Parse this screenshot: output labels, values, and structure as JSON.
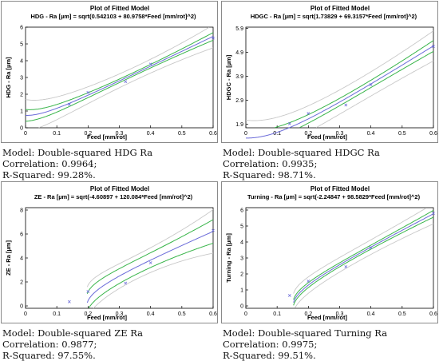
{
  "panels": [
    {
      "id": "hdg",
      "title": "Plot of Fitted Model",
      "subtitle": "HDG - Ra [µm] = sqrt(0.542103 + 80.9758*Feed [mm/rot]^2)",
      "captions": [
        "Model: Double-squared HDG Ra",
        "Correlation: 0.9964;",
        "R-Squared: 99.28%."
      ]
    },
    {
      "id": "hdgc",
      "title": "Plot of Fitted Model",
      "subtitle": "HDGC - Ra [µm] = sqrt(1.73829 + 69.3157*Feed [mm/rot]^2)",
      "captions": [
        "Model: Double-squared HDGC Ra",
        "Correlation: 0.9935;",
        "R-Squared: 98.71%."
      ]
    },
    {
      "id": "ze",
      "title": "Plot of Fitted Model",
      "subtitle": "ZE - Ra [µm] = sqrt(-4.60897 + 120.084*Feed [mm/rot]^2)",
      "captions": [
        "Model: Double-squared ZE Ra",
        "Correlation: 0.9877;",
        "R-Squared: 97.55%."
      ]
    },
    {
      "id": "turning",
      "title": "Plot of Fitted Model",
      "subtitle": "Turning - Ra  [µm] = sqrt(-2.24847 + 98.5829*Feed [mm/rot]^2)",
      "captions": [
        "Model: Double-squared Turning Ra",
        "Correlation: 0.9975;",
        "R-Squared: 99.51%."
      ]
    }
  ],
  "chart_data": [
    {
      "type": "line",
      "title": "Plot of Fitted Model",
      "subtitle": "HDG - Ra [µm] = sqrt(0.542103 + 80.9758*Feed [mm/rot]^2)",
      "xlabel": "Feed [mm/rot]",
      "ylabel": "HDG - Ra [µm]",
      "xlim": [
        0,
        0.6
      ],
      "ylim": [
        0,
        6
      ],
      "xticks": [
        0,
        0.1,
        0.2,
        0.3,
        0.4,
        0.5,
        0.6
      ],
      "yticks": [
        0,
        1,
        2,
        3,
        4,
        5,
        6
      ],
      "ytick_labels": [
        "0",
        "1",
        "2",
        "3",
        "4",
        "5",
        "6"
      ],
      "model": {
        "a": 0.542103,
        "b": 80.9758
      },
      "bands": {
        "confidence": [
          0.35,
          0.1
        ],
        "prediction": [
          0.95,
          0.4
        ]
      },
      "points": {
        "x": [
          0.14,
          0.2,
          0.32,
          0.4,
          0.6
        ],
        "y": [
          1.4,
          2.1,
          2.75,
          3.8,
          5.35
        ]
      },
      "colors": {
        "fit": "#6b6bd9",
        "confidence": "#39b54a",
        "prediction": "#c8c8c8",
        "points": "#6b6bd9"
      }
    },
    {
      "type": "line",
      "title": "Plot of Fitted Model",
      "subtitle": "HDGC - Ra [µm] = sqrt(1.73829 + 69.3157*Feed [mm/rot]^2)",
      "xlabel": "Feed [mm/rot]",
      "ylabel": "HDGC - Ra [µm]",
      "xlim": [
        0,
        0.6
      ],
      "ylim": [
        1.75,
        5.95
      ],
      "xticks": [
        0,
        0.1,
        0.2,
        0.3,
        0.4,
        0.5,
        0.6
      ],
      "yticks": [
        1.9,
        2.9,
        3.9,
        4.9,
        5.9
      ],
      "ytick_labels": [
        "1.9",
        "2.9",
        "3.9",
        "4.9",
        "5.9"
      ],
      "model": {
        "a": 1.73829,
        "b": 69.3157
      },
      "bands": {
        "confidence": [
          0.3,
          0.15
        ],
        "prediction": [
          0.75,
          0.5
        ]
      },
      "points": {
        "x": [
          0.14,
          0.2,
          0.32,
          0.4,
          0.6
        ],
        "y": [
          1.92,
          2.35,
          2.7,
          3.55,
          5.15
        ]
      },
      "colors": {
        "fit": "#6b6bd9",
        "confidence": "#39b54a",
        "prediction": "#c8c8c8",
        "points": "#6b6bd9"
      }
    },
    {
      "type": "line",
      "title": "Plot of Fitted Model",
      "subtitle": "ZE - Ra [µm] = sqrt(-4.60897 + 120.084*Feed [mm/rot]^2)",
      "xlabel": "Feed [mm/rot]",
      "ylabel": "ZE - Ra [µm]",
      "xlim": [
        0,
        0.6
      ],
      "ylim": [
        -0.2,
        8.2
      ],
      "xticks": [
        0,
        0.1,
        0.2,
        0.3,
        0.4,
        0.5,
        0.6
      ],
      "yticks": [
        0,
        2,
        4,
        6,
        8
      ],
      "ytick_labels": [
        "0",
        "2",
        "4",
        "6",
        "8"
      ],
      "model": {
        "a": -4.60897,
        "b": 120.084
      },
      "bands": {
        "confidence": [
          1.35,
          0.6
        ],
        "prediction": [
          2.6,
          1.0
        ]
      },
      "points": {
        "x": [
          0.14,
          0.2,
          0.32,
          0.4,
          0.6
        ],
        "y": [
          0.35,
          1.2,
          1.9,
          3.6,
          6.3
        ]
      },
      "colors": {
        "fit": "#6b6bd9",
        "confidence": "#39b54a",
        "prediction": "#c8c8c8",
        "points": "#6b6bd9"
      }
    },
    {
      "type": "line",
      "title": "Plot of Fitted Model",
      "subtitle": "Turning - Ra  [µm] = sqrt(-2.24847 + 98.5829*Feed [mm/rot]^2)",
      "xlabel": "Feed [mm/rot]",
      "ylabel": "Turning - Ra [µm]",
      "xlim": [
        0,
        0.6
      ],
      "ylim": [
        -0.15,
        6.15
      ],
      "xticks": [
        0,
        0.1,
        0.2,
        0.3,
        0.4,
        0.5,
        0.6
      ],
      "yticks": [
        0,
        1,
        2,
        3,
        4,
        5,
        6
      ],
      "ytick_labels": [
        "0",
        "1",
        "2",
        "3",
        "4",
        "5",
        "6"
      ],
      "model": {
        "a": -2.24847,
        "b": 98.5829
      },
      "bands": {
        "confidence": [
          0.3,
          0.12
        ],
        "prediction": [
          0.8,
          0.45
        ]
      },
      "points": {
        "x": [
          0.14,
          0.2,
          0.32,
          0.4,
          0.6
        ],
        "y": [
          0.65,
          1.55,
          2.45,
          3.65,
          5.8
        ]
      },
      "colors": {
        "fit": "#6b6bd9",
        "confidence": "#39b54a",
        "prediction": "#c8c8c8",
        "points": "#6b6bd9"
      }
    }
  ]
}
